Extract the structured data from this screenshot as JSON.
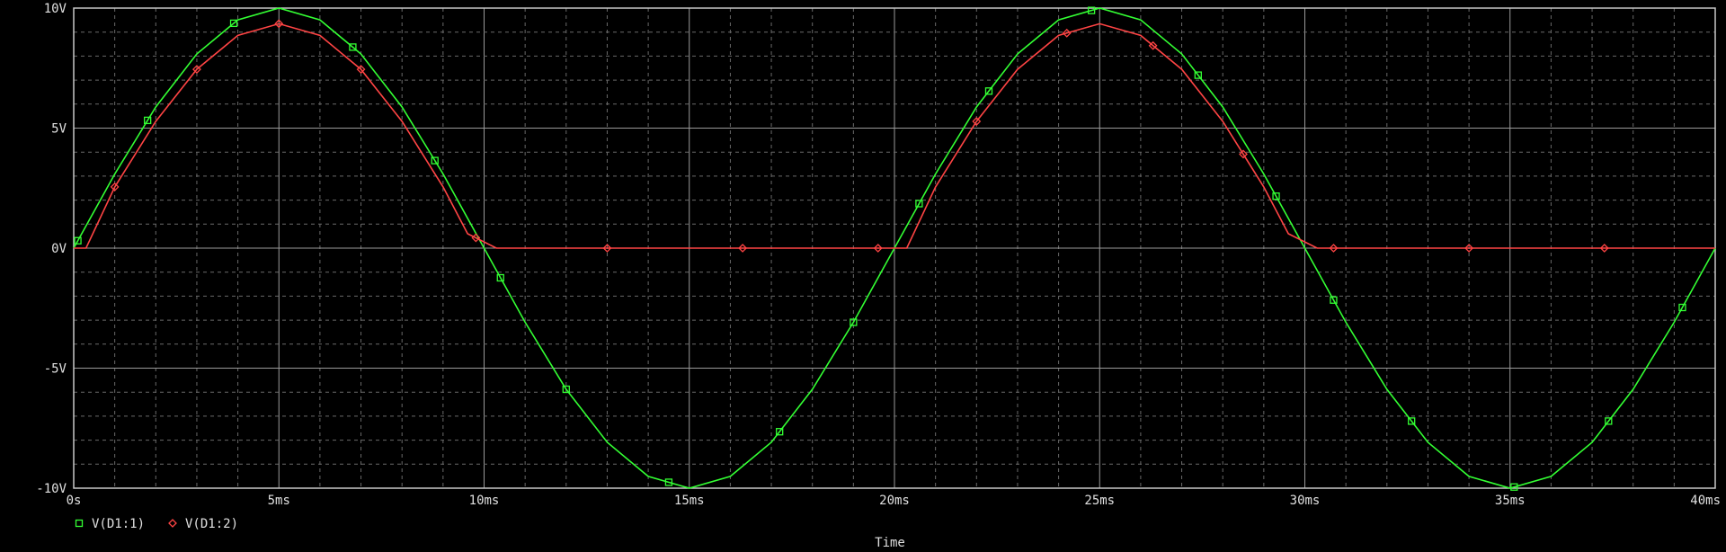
{
  "chart_data": {
    "type": "line",
    "title": "",
    "xlabel": "Time",
    "ylabel": "",
    "xlim": [
      0,
      40
    ],
    "ylim": [
      -10,
      10
    ],
    "x_ticks": [
      {
        "v": 0,
        "label": "0s"
      },
      {
        "v": 5,
        "label": "5ms"
      },
      {
        "v": 10,
        "label": "10ms"
      },
      {
        "v": 15,
        "label": "15ms"
      },
      {
        "v": 20,
        "label": "20ms"
      },
      {
        "v": 25,
        "label": "25ms"
      },
      {
        "v": 30,
        "label": "30ms"
      },
      {
        "v": 35,
        "label": "35ms"
      },
      {
        "v": 40,
        "label": "40ms"
      }
    ],
    "y_ticks": [
      {
        "v": 10,
        "label": "10V"
      },
      {
        "v": 5,
        "label": "5V"
      },
      {
        "v": 0,
        "label": "0V"
      },
      {
        "v": -5,
        "label": "-5V"
      },
      {
        "v": -10,
        "label": "-10V"
      }
    ],
    "grid": true,
    "legend_position": "bottom-left",
    "series": [
      {
        "name": "V(D1:1)",
        "color": "#33ff33",
        "marker": "square",
        "x": [
          0,
          1,
          2,
          3,
          4,
          5,
          6,
          7,
          8,
          9,
          10,
          11,
          12,
          13,
          14,
          15,
          16,
          17,
          18,
          19,
          20,
          21,
          22,
          23,
          24,
          25,
          26,
          27,
          28,
          29,
          30,
          31,
          32,
          33,
          34,
          35,
          36,
          37,
          38,
          39,
          40
        ],
        "y": [
          0.0,
          3.09,
          5.88,
          8.09,
          9.51,
          10.0,
          9.51,
          8.09,
          5.88,
          3.09,
          0.0,
          -3.09,
          -5.88,
          -8.09,
          -9.51,
          -10.0,
          -9.51,
          -8.09,
          -5.88,
          -3.09,
          0.0,
          3.09,
          5.88,
          8.09,
          9.51,
          10.0,
          9.51,
          8.09,
          5.88,
          3.09,
          0.0,
          -3.09,
          -5.88,
          -8.09,
          -9.51,
          -10.0,
          -9.51,
          -8.09,
          -5.88,
          -3.09,
          0.0
        ],
        "marker_x": [
          0.1,
          1.8,
          3.9,
          6.8,
          8.8,
          10.4,
          12.0,
          14.5,
          17.2,
          19.0,
          20.6,
          22.3,
          24.8,
          27.4,
          29.3,
          30.7,
          32.6,
          35.1,
          37.4,
          39.2
        ]
      },
      {
        "name": "V(D1:2)",
        "color": "#ff4444",
        "marker": "diamond",
        "x": [
          0,
          0.3,
          1,
          2,
          3,
          4,
          5,
          6,
          7,
          8,
          9,
          9.6,
          10.3,
          11,
          12,
          13,
          14,
          15,
          16,
          17,
          18,
          19,
          19.7,
          20.3,
          21,
          22,
          23,
          24,
          25,
          26,
          27,
          28,
          29,
          29.6,
          30.3,
          31,
          32,
          33,
          34,
          35,
          36,
          37,
          38,
          39,
          40
        ],
        "y": [
          0.0,
          0.0,
          2.55,
          5.28,
          7.45,
          8.86,
          9.35,
          8.86,
          7.45,
          5.28,
          2.55,
          0.6,
          0.0,
          0.0,
          0.0,
          0.0,
          0.0,
          0.0,
          0.0,
          0.0,
          0.0,
          0.0,
          0.0,
          0.0,
          2.55,
          5.28,
          7.45,
          8.86,
          9.35,
          8.86,
          7.45,
          5.28,
          2.55,
          0.6,
          0.0,
          0.0,
          0.0,
          0.0,
          0.0,
          0.0,
          0.0,
          0.0,
          0.0,
          0.0,
          0.0
        ],
        "marker_x": [
          1.0,
          3.0,
          5.0,
          7.0,
          9.8,
          13.0,
          16.3,
          19.6,
          22.0,
          24.2,
          26.3,
          28.5,
          30.7,
          34.0,
          37.3
        ]
      }
    ]
  }
}
